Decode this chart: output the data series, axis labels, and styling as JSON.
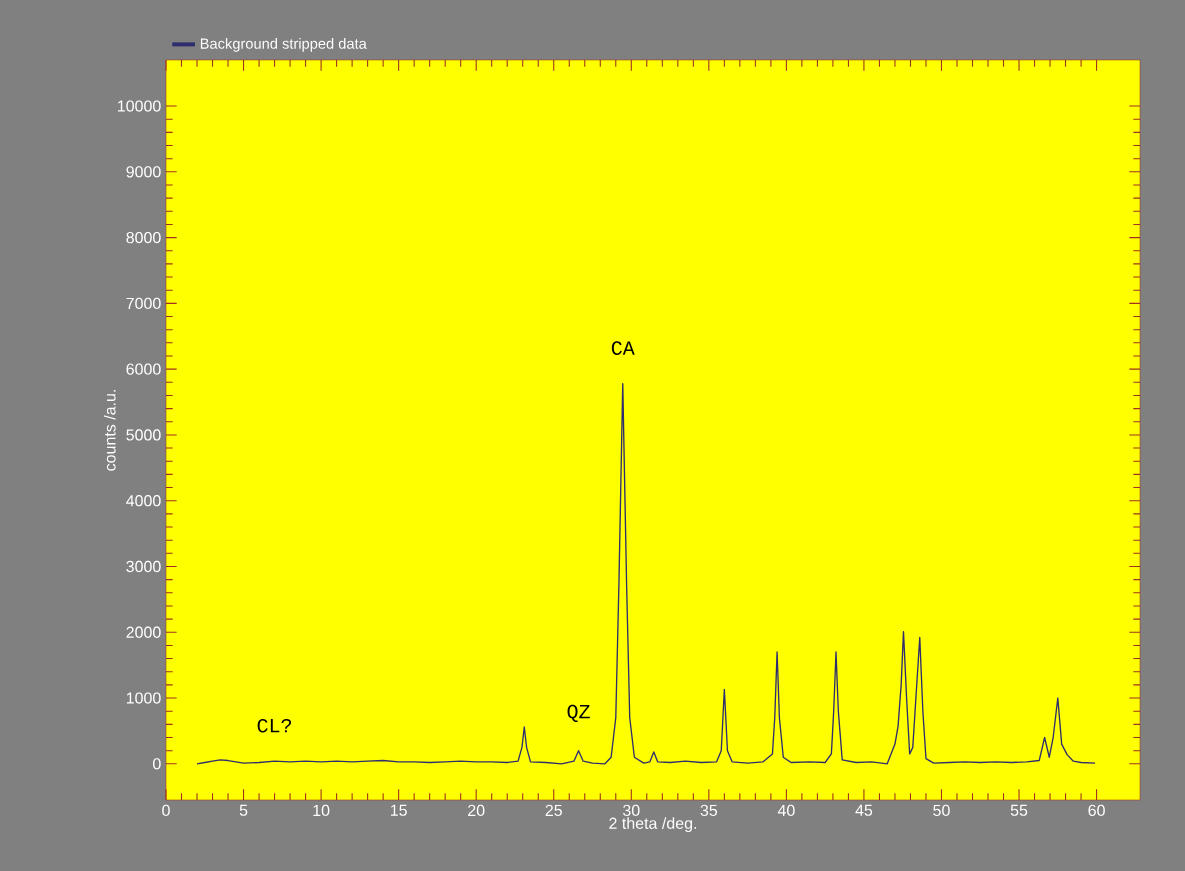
{
  "chart_data": {
    "type": "line",
    "xlabel": "2 theta /deg.",
    "ylabel": "counts /a.u.",
    "xlim": [
      0,
      62.8
    ],
    "ylim": [
      -550,
      10700
    ],
    "xticks": [
      0,
      5,
      10,
      15,
      20,
      25,
      30,
      35,
      40,
      45,
      50,
      55,
      60
    ],
    "yticks": [
      0,
      1000,
      2000,
      3000,
      4000,
      5000,
      6000,
      7000,
      8000,
      9000,
      10000
    ],
    "legend": "top left",
    "marker": "none",
    "line_style": "solid",
    "annotations": [
      {
        "text": "CL?",
        "x": 7.0,
        "y": 40
      },
      {
        "text": "QZ",
        "x": 26.6,
        "y": 200
      },
      {
        "text": "CA",
        "x": 29.45,
        "y": 5780
      }
    ],
    "series": [
      {
        "name": "Background stripped data",
        "color": "#2e2e6e",
        "x": [
          2.0,
          2.5,
          3.0,
          3.5,
          4.0,
          4.5,
          5.0,
          6.0,
          7.0,
          8.0,
          9.0,
          10,
          11,
          12,
          13,
          14,
          15,
          16,
          17,
          18,
          19,
          20,
          21,
          22,
          22.7,
          22.95,
          23.1,
          23.25,
          23.5,
          24.5,
          25.5,
          26.3,
          26.6,
          26.9,
          27.5,
          28.3,
          28.7,
          29.0,
          29.2,
          29.45,
          29.7,
          29.9,
          30.2,
          30.8,
          31.2,
          31.45,
          31.7,
          32.5,
          33.5,
          34.5,
          35.5,
          35.8,
          36.0,
          36.2,
          36.5,
          37.5,
          38.5,
          39.1,
          39.25,
          39.4,
          39.55,
          39.8,
          40.3,
          41.5,
          42.5,
          42.9,
          43.05,
          43.2,
          43.35,
          43.6,
          44.5,
          45.5,
          46.5,
          47.0,
          47.2,
          47.4,
          47.55,
          47.75,
          47.95,
          48.15,
          48.35,
          48.6,
          48.8,
          49.0,
          49.5,
          50.5,
          51.5,
          52.5,
          53.5,
          54.5,
          55.5,
          56.3,
          56.65,
          56.95,
          57.2,
          57.5,
          57.75,
          58.1,
          58.5,
          59.0,
          59.9
        ],
        "values": [
          0,
          20,
          40,
          60,
          50,
          30,
          10,
          20,
          40,
          30,
          40,
          30,
          40,
          30,
          40,
          50,
          30,
          30,
          20,
          30,
          40,
          30,
          30,
          20,
          40,
          250,
          560,
          250,
          30,
          20,
          0,
          40,
          200,
          40,
          10,
          0,
          100,
          700,
          2700,
          5780,
          2700,
          700,
          100,
          10,
          30,
          180,
          30,
          20,
          40,
          20,
          30,
          200,
          1130,
          200,
          30,
          10,
          30,
          150,
          700,
          1700,
          700,
          100,
          20,
          30,
          20,
          150,
          800,
          1700,
          800,
          60,
          20,
          30,
          0,
          300,
          570,
          1200,
          2010,
          1000,
          150,
          250,
          1000,
          1920,
          800,
          80,
          10,
          20,
          30,
          20,
          30,
          20,
          30,
          50,
          400,
          100,
          400,
          1000,
          300,
          140,
          40,
          20,
          10
        ]
      }
    ]
  }
}
